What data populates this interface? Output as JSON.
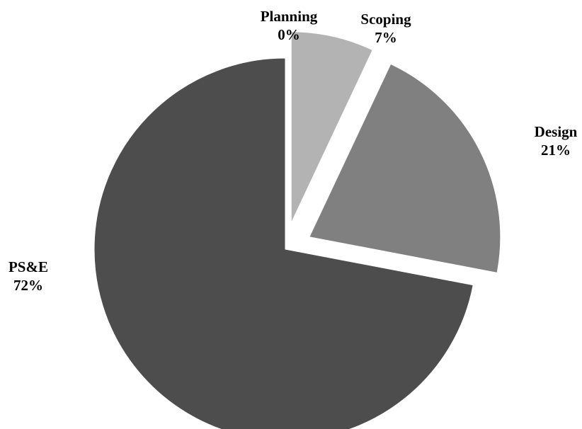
{
  "chart_data": {
    "type": "pie",
    "title": "",
    "slices": [
      {
        "label": "Planning",
        "value": 0,
        "percent_label": "0%",
        "color": "#b3b3b3"
      },
      {
        "label": "Scoping",
        "value": 7,
        "percent_label": "7%",
        "color": "#b3b3b3"
      },
      {
        "label": "Design",
        "value": 21,
        "percent_label": "21%",
        "color": "#808080"
      },
      {
        "label": "PS&E",
        "value": 72,
        "percent_label": "72%",
        "color": "#4d4d4d"
      }
    ],
    "exploded": [
      "Scoping",
      "Design"
    ],
    "start_angle": "12 o'clock",
    "direction": "clockwise",
    "legend": "none"
  }
}
